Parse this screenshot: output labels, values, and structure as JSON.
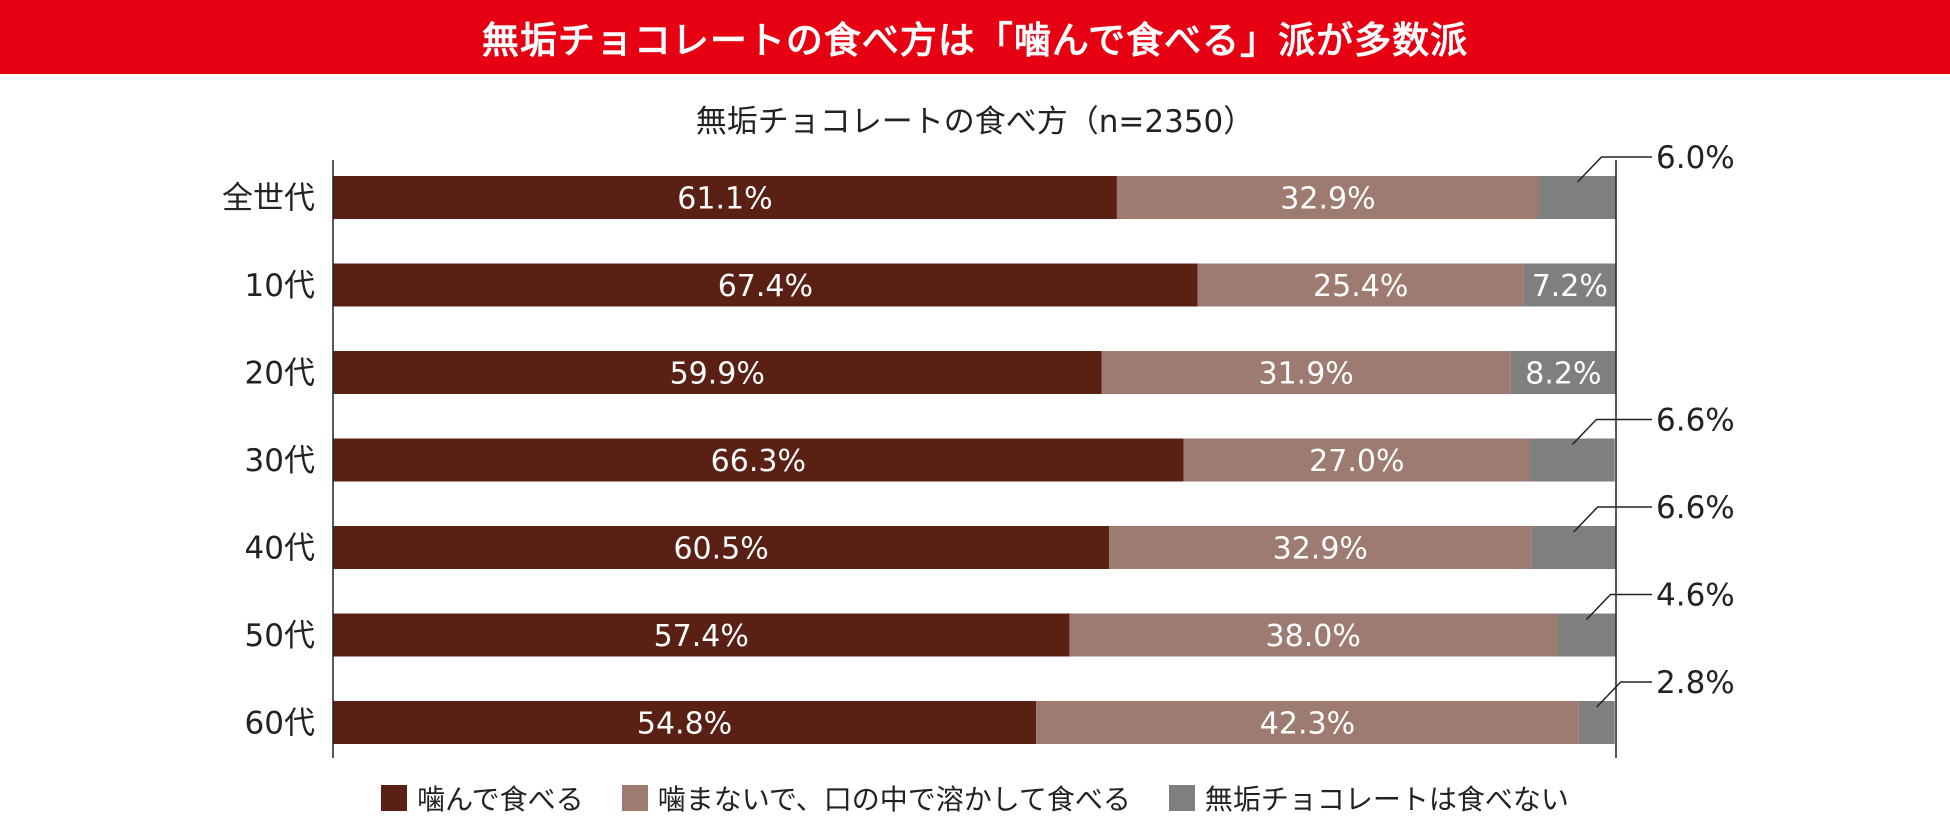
{
  "banner": {
    "title": "無垢チョコレートの食べ方は「噛んで食べる」派が多数派"
  },
  "colors": {
    "banner": "#e60012",
    "series": [
      "#5b2014",
      "#9e7b70",
      "#7f7f7f"
    ],
    "axis": "#222222",
    "label_inside": "#ffffff",
    "label_outside": "#222222"
  },
  "chart_data": {
    "type": "bar",
    "orientation": "horizontal",
    "stacked": true,
    "title": "無垢チョコレートの食べ方（n=2350）",
    "categories": [
      "全世代",
      "10代",
      "20代",
      "30代",
      "40代",
      "50代",
      "60代"
    ],
    "series": [
      {
        "name": "噛んで食べる",
        "values": [
          61.1,
          67.4,
          59.9,
          66.3,
          60.5,
          57.4,
          54.8
        ]
      },
      {
        "name": "噛まないで、口の中で溶かして食べる",
        "values": [
          32.9,
          25.4,
          31.9,
          27.0,
          32.9,
          38.0,
          42.3
        ]
      },
      {
        "name": "無垢チョコレートは食べない",
        "values": [
          6.0,
          7.2,
          8.2,
          6.6,
          6.6,
          4.6,
          2.8
        ]
      }
    ],
    "data_labels": [
      [
        "61.1%",
        "67.4%",
        "59.9%",
        "66.3%",
        "60.5%",
        "57.4%",
        "54.8%"
      ],
      [
        "32.9%",
        "25.4%",
        "31.9%",
        "27.0%",
        "32.9%",
        "38.0%",
        "42.3%"
      ],
      [
        "6.0%",
        "7.2%",
        "8.2%",
        "6.6%",
        "6.6%",
        "4.6%",
        "2.8%"
      ]
    ],
    "third_label_outside": [
      true,
      false,
      false,
      true,
      true,
      true,
      true
    ],
    "xlim": [
      0,
      100
    ],
    "grid": false,
    "legend_position": "bottom"
  }
}
